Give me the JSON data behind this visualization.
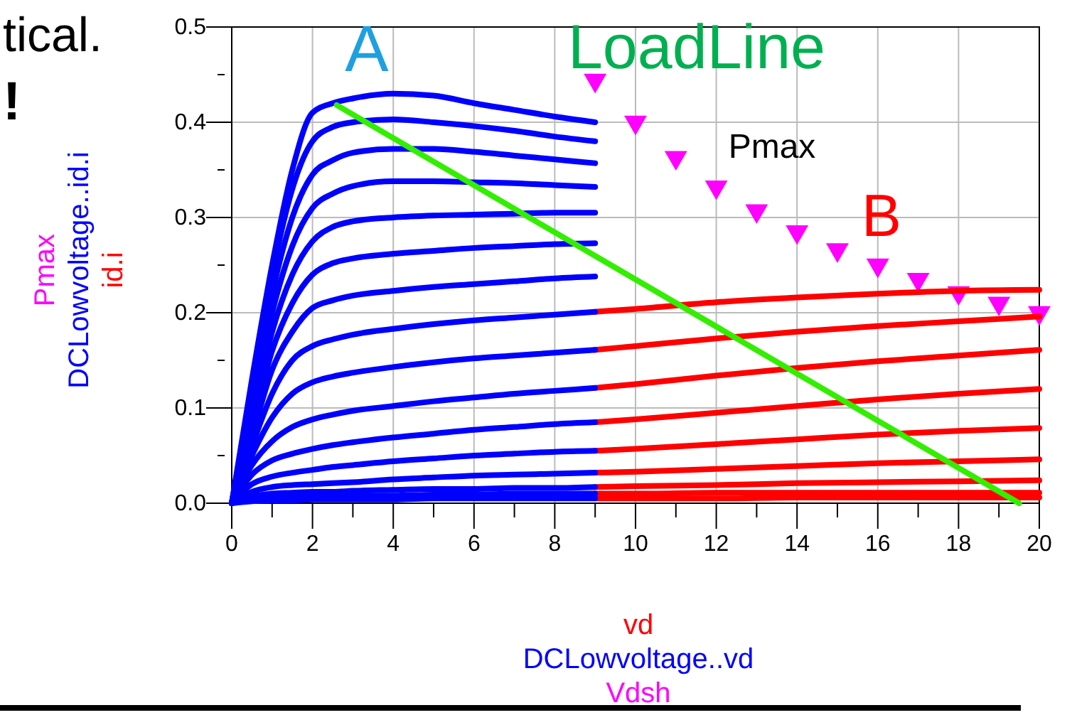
{
  "chart_data": {
    "type": "line",
    "xlabel": "vd\nDCLowvoltage..vd\nVdsh",
    "ylabel": "Pmax\nDCLowvoltage..id.i\nid.i",
    "xlim": [
      0,
      20
    ],
    "xticks": [
      0,
      {
        "value": 1,
        "label": null
      },
      2,
      {
        "value": 3,
        "label": null
      },
      4,
      {
        "value": 5,
        "label": null
      },
      6,
      {
        "value": 7,
        "label": null
      },
      8,
      {
        "value": 9,
        "label": null
      },
      10,
      {
        "value": 11,
        "label": null
      },
      12,
      {
        "value": 13,
        "label": null
      },
      14,
      {
        "value": 15,
        "label": null
      },
      16,
      {
        "value": 17,
        "label": null
      },
      18,
      {
        "value": 19,
        "label": null
      },
      20
    ],
    "ylim": [
      0,
      0.5
    ],
    "yticks": [
      {
        "value": 0,
        "label": "0.0"
      },
      {
        "value": 0.05,
        "label": null
      },
      {
        "value": 0.1,
        "label": "0.1"
      },
      {
        "value": 0.15,
        "label": null
      },
      {
        "value": 0.2,
        "label": "0.2"
      },
      {
        "value": 0.25,
        "label": null
      },
      {
        "value": 0.3,
        "label": "0.3"
      },
      {
        "value": 0.35,
        "label": null
      },
      {
        "value": 0.4,
        "label": "0.4"
      },
      {
        "value": 0.45,
        "label": null
      },
      {
        "value": 0.5,
        "label": "0.5"
      }
    ],
    "grid": true,
    "annotations": [
      "tical.",
      "!",
      "A",
      "LoadLine",
      "Pmax",
      "B"
    ],
    "series": [
      {
        "color": "#ff0000",
        "x": [
          9,
          10,
          12,
          14,
          16,
          18,
          20
        ],
        "values": [
          0.201,
          0.204,
          0.211,
          0.216,
          0.22,
          0.223,
          0.224
        ]
      },
      {
        "color": "#ff0000",
        "x": [
          9,
          10,
          12,
          14,
          16,
          18,
          20
        ],
        "values": [
          0.161,
          0.165,
          0.173,
          0.18,
          0.186,
          0.191,
          0.196
        ]
      },
      {
        "color": "#ff0000",
        "x": [
          9,
          10,
          12,
          14,
          16,
          18,
          20
        ],
        "values": [
          0.121,
          0.125,
          0.134,
          0.142,
          0.149,
          0.155,
          0.161
        ]
      },
      {
        "color": "#ff0000",
        "x": [
          9,
          10,
          12,
          14,
          16,
          18,
          20
        ],
        "values": [
          0.085,
          0.088,
          0.095,
          0.102,
          0.109,
          0.115,
          0.12
        ]
      },
      {
        "color": "#ff0000",
        "x": [
          9,
          10,
          12,
          14,
          16,
          18,
          20
        ],
        "values": [
          0.055,
          0.057,
          0.062,
          0.067,
          0.072,
          0.076,
          0.079
        ]
      },
      {
        "color": "#ff0000",
        "x": [
          9,
          10,
          12,
          14,
          16,
          18,
          20
        ],
        "values": [
          0.032,
          0.033,
          0.036,
          0.039,
          0.042,
          0.044,
          0.046
        ]
      },
      {
        "color": "#ff0000",
        "x": [
          9,
          10,
          12,
          14,
          16,
          18,
          20
        ],
        "values": [
          0.017,
          0.018,
          0.019,
          0.021,
          0.022,
          0.023,
          0.024
        ]
      },
      {
        "color": "#ff0000",
        "x": [
          9,
          10,
          12,
          14,
          16,
          18,
          20
        ],
        "values": [
          0.01,
          0.01,
          0.011,
          0.011,
          0.011,
          0.011,
          0.011
        ]
      },
      {
        "color": "#ff0000",
        "x": [
          9,
          10,
          12,
          14,
          16,
          18,
          20
        ],
        "values": [
          0.005,
          0.005,
          0.005,
          0.006,
          0.006,
          0.006,
          0.006
        ]
      },
      {
        "color": "#0000ff",
        "x": [
          0,
          0.5,
          1,
          1.5,
          2,
          2.5,
          3,
          4,
          5,
          6,
          7,
          8,
          9
        ],
        "values": [
          0,
          0.13,
          0.25,
          0.35,
          0.41,
          0.42,
          0.425,
          0.43,
          0.428,
          0.42,
          0.413,
          0.406,
          0.4
        ]
      },
      {
        "color": "#0000ff",
        "x": [
          0,
          0.5,
          1,
          1.5,
          2,
          2.5,
          3,
          4,
          5,
          6,
          7,
          8,
          9
        ],
        "values": [
          0,
          0.12,
          0.24,
          0.33,
          0.38,
          0.395,
          0.4,
          0.403,
          0.4,
          0.396,
          0.391,
          0.385,
          0.38
        ]
      },
      {
        "color": "#0000ff",
        "x": [
          0,
          0.5,
          1,
          1.5,
          2,
          2.5,
          3,
          4,
          5,
          6,
          7,
          8,
          9
        ],
        "values": [
          0,
          0.11,
          0.22,
          0.3,
          0.345,
          0.36,
          0.368,
          0.372,
          0.372,
          0.369,
          0.365,
          0.361,
          0.357
        ]
      },
      {
        "color": "#0000ff",
        "x": [
          0,
          0.5,
          1,
          1.5,
          2,
          2.5,
          3,
          4,
          5,
          6,
          7,
          8,
          9
        ],
        "values": [
          0,
          0.1,
          0.2,
          0.27,
          0.31,
          0.325,
          0.333,
          0.338,
          0.338,
          0.337,
          0.336,
          0.334,
          0.332
        ]
      },
      {
        "color": "#0000ff",
        "x": [
          0,
          0.5,
          1,
          1.5,
          2,
          2.5,
          3,
          4,
          5,
          6,
          7,
          8,
          9
        ],
        "values": [
          0,
          0.09,
          0.18,
          0.24,
          0.275,
          0.29,
          0.296,
          0.3,
          0.302,
          0.303,
          0.304,
          0.305,
          0.305
        ]
      },
      {
        "color": "#0000ff",
        "x": [
          0,
          0.5,
          1,
          1.5,
          2,
          2.5,
          3,
          4,
          5,
          6,
          7,
          8,
          9
        ],
        "values": [
          0,
          0.08,
          0.16,
          0.21,
          0.24,
          0.252,
          0.257,
          0.262,
          0.265,
          0.268,
          0.27,
          0.272,
          0.273
        ]
      },
      {
        "color": "#0000ff",
        "x": [
          0,
          0.5,
          1,
          1.5,
          2,
          2.5,
          3,
          4,
          5,
          6,
          7,
          8,
          9
        ],
        "values": [
          0,
          0.07,
          0.14,
          0.18,
          0.205,
          0.213,
          0.218,
          0.223,
          0.227,
          0.23,
          0.233,
          0.236,
          0.238
        ]
      },
      {
        "color": "#0000ff",
        "x": [
          0,
          0.5,
          1,
          1.5,
          2,
          2.5,
          3,
          4,
          5,
          6,
          7,
          8,
          9
        ],
        "values": [
          0,
          0.06,
          0.115,
          0.15,
          0.165,
          0.172,
          0.177,
          0.183,
          0.188,
          0.192,
          0.195,
          0.198,
          0.201
        ]
      },
      {
        "color": "#0000ff",
        "x": [
          0,
          0.5,
          1,
          1.5,
          2,
          2.5,
          3,
          4,
          5,
          6,
          7,
          8,
          9
        ],
        "values": [
          0,
          0.05,
          0.09,
          0.115,
          0.127,
          0.133,
          0.137,
          0.143,
          0.148,
          0.152,
          0.155,
          0.158,
          0.161
        ]
      },
      {
        "color": "#0000ff",
        "x": [
          0,
          0.5,
          1,
          1.5,
          2,
          2.5,
          3,
          4,
          5,
          6,
          7,
          8,
          9
        ],
        "values": [
          0,
          0.04,
          0.065,
          0.08,
          0.088,
          0.093,
          0.097,
          0.102,
          0.107,
          0.111,
          0.115,
          0.118,
          0.121
        ]
      },
      {
        "color": "#0000ff",
        "x": [
          0,
          0.5,
          1,
          1.5,
          2,
          2.5,
          3,
          4,
          5,
          6,
          7,
          8,
          9
        ],
        "values": [
          0,
          0.03,
          0.045,
          0.052,
          0.057,
          0.061,
          0.064,
          0.069,
          0.073,
          0.077,
          0.08,
          0.083,
          0.085
        ]
      },
      {
        "color": "#0000ff",
        "x": [
          0,
          0.5,
          1,
          1.5,
          2,
          2.5,
          3,
          4,
          5,
          6,
          7,
          8,
          9
        ],
        "values": [
          0,
          0.02,
          0.028,
          0.032,
          0.035,
          0.038,
          0.04,
          0.044,
          0.047,
          0.05,
          0.052,
          0.054,
          0.055
        ]
      },
      {
        "color": "#0000ff",
        "x": [
          0,
          0.5,
          1,
          1.5,
          2,
          2.5,
          3,
          4,
          5,
          6,
          7,
          8,
          9
        ],
        "values": [
          0,
          0.012,
          0.017,
          0.019,
          0.02,
          0.021,
          0.022,
          0.025,
          0.027,
          0.029,
          0.03,
          0.031,
          0.032
        ]
      },
      {
        "color": "#0000ff",
        "x": [
          0,
          0.5,
          1,
          1.5,
          2,
          2.5,
          3,
          4,
          5,
          6,
          7,
          8,
          9
        ],
        "values": [
          0,
          0.007,
          0.01,
          0.011,
          0.012,
          0.012,
          0.013,
          0.014,
          0.015,
          0.015,
          0.016,
          0.016,
          0.017
        ]
      },
      {
        "color": "#0000ff",
        "x": [
          0,
          0.5,
          1,
          1.5,
          2,
          2.5,
          3,
          4,
          5,
          6,
          7,
          8,
          9
        ],
        "values": [
          0,
          0.004,
          0.006,
          0.007,
          0.007,
          0.008,
          0.008,
          0.008,
          0.009,
          0.009,
          0.01,
          0.01,
          0.01
        ]
      },
      {
        "color": "#0000ff",
        "x": [
          0,
          0.5,
          1,
          1.5,
          2,
          2.5,
          3,
          4,
          5,
          6,
          7,
          8,
          9
        ],
        "values": [
          0,
          0.002,
          0.003,
          0.003,
          0.004,
          0.004,
          0.004,
          0.004,
          0.005,
          0.005,
          0.005,
          0.005,
          0.005
        ]
      },
      {
        "color": "#33ee00",
        "x": [
          2.6,
          19.5
        ],
        "values": [
          0.418,
          0
        ]
      },
      {
        "type": "scatter",
        "marker": "triangle",
        "color": "#ff00ff",
        "x": [
          9,
          10,
          11,
          12,
          13,
          14,
          15,
          16,
          17,
          18,
          19,
          20
        ],
        "values": [
          0.444,
          0.4,
          0.363,
          0.332,
          0.307,
          0.285,
          0.266,
          0.25,
          0.235,
          0.221,
          0.21,
          0.2
        ]
      }
    ]
  }
}
